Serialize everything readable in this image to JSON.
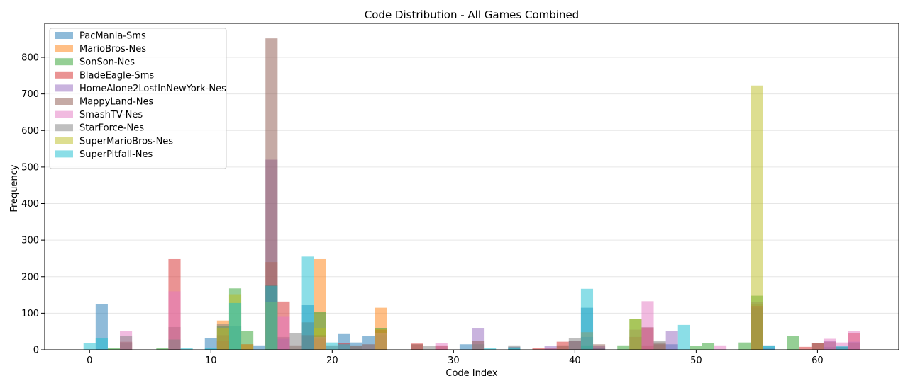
{
  "chart_data": {
    "type": "bar",
    "title": "Code Distribution - All Games Combined",
    "xlabel": "Code Index",
    "ylabel": "Frequency",
    "xlim": [
      -3.7,
      66.7
    ],
    "ylim": [
      0,
      893
    ],
    "xticks": [
      0,
      10,
      20,
      30,
      40,
      50,
      60
    ],
    "yticks": [
      0,
      100,
      200,
      300,
      400,
      500,
      600,
      700,
      800
    ],
    "grid": "y",
    "legend_position": "top-left",
    "bar_alpha": 0.5,
    "series": [
      {
        "name": "PacMania-Sms",
        "color": "#1f77b4",
        "points": [
          [
            1,
            125
          ],
          [
            10,
            32
          ],
          [
            12,
            65
          ],
          [
            14,
            12
          ],
          [
            15,
            175
          ],
          [
            18,
            122
          ],
          [
            21,
            43
          ],
          [
            22,
            20
          ],
          [
            23,
            37
          ],
          [
            31,
            15
          ],
          [
            35,
            8
          ],
          [
            41,
            115
          ],
          [
            42,
            6
          ],
          [
            46,
            12
          ],
          [
            48,
            15
          ],
          [
            56,
            12
          ],
          [
            61,
            8
          ],
          [
            62,
            8
          ]
        ]
      },
      {
        "name": "MarioBros-Nes",
        "color": "#ff7f0e",
        "points": [
          [
            11,
            80
          ],
          [
            15,
            240
          ],
          [
            19,
            248
          ],
          [
            24,
            115
          ],
          [
            41,
            48
          ],
          [
            46,
            10
          ],
          [
            55,
            125
          ]
        ]
      },
      {
        "name": "SonSon-Nes",
        "color": "#2ca02c",
        "points": [
          [
            2,
            5
          ],
          [
            6,
            4
          ],
          [
            11,
            65
          ],
          [
            12,
            168
          ],
          [
            13,
            52
          ],
          [
            15,
            178
          ],
          [
            19,
            103
          ],
          [
            24,
            60
          ],
          [
            41,
            12
          ],
          [
            44,
            12
          ],
          [
            45,
            85
          ],
          [
            50,
            10
          ],
          [
            51,
            18
          ],
          [
            54,
            20
          ],
          [
            55,
            148
          ],
          [
            58,
            38
          ]
        ]
      },
      {
        "name": "BladeEagle-Sms",
        "color": "#d62728",
        "points": [
          [
            3,
            22
          ],
          [
            7,
            248
          ],
          [
            11,
            25
          ],
          [
            13,
            15
          ],
          [
            16,
            132
          ],
          [
            18,
            40
          ],
          [
            19,
            30
          ],
          [
            21,
            18
          ],
          [
            24,
            55
          ],
          [
            27,
            17
          ],
          [
            29,
            12
          ],
          [
            37,
            5
          ],
          [
            38,
            5
          ],
          [
            39,
            22
          ],
          [
            46,
            60
          ],
          [
            47,
            15
          ],
          [
            55,
            120
          ],
          [
            59,
            8
          ],
          [
            60,
            18
          ],
          [
            63,
            45
          ]
        ]
      },
      {
        "name": "HomeAlone2LostInNewYork-Nes",
        "color": "#9467bd",
        "points": [
          [
            15,
            520
          ],
          [
            16,
            30
          ],
          [
            32,
            60
          ],
          [
            38,
            10
          ],
          [
            40,
            25
          ],
          [
            42,
            10
          ],
          [
            48,
            52
          ],
          [
            56,
            5
          ],
          [
            61,
            25
          ],
          [
            63,
            22
          ]
        ]
      },
      {
        "name": "MappyLand-Nes",
        "color": "#8c564b",
        "points": [
          [
            3,
            20
          ],
          [
            7,
            62
          ],
          [
            11,
            40
          ],
          [
            15,
            852
          ],
          [
            16,
            35
          ],
          [
            17,
            12
          ],
          [
            18,
            75
          ],
          [
            19,
            40
          ],
          [
            20,
            12
          ],
          [
            22,
            10
          ],
          [
            23,
            15
          ],
          [
            24,
            40
          ],
          [
            27,
            15
          ],
          [
            29,
            10
          ],
          [
            32,
            25
          ],
          [
            39,
            12
          ],
          [
            40,
            25
          ],
          [
            41,
            5
          ],
          [
            42,
            15
          ],
          [
            45,
            35
          ],
          [
            46,
            62
          ],
          [
            47,
            20
          ],
          [
            55,
            115
          ],
          [
            60,
            18
          ],
          [
            61,
            22
          ],
          [
            63,
            20
          ]
        ]
      },
      {
        "name": "SmashTV-Nes",
        "color": "#e377c2",
        "points": [
          [
            3,
            52
          ],
          [
            7,
            160
          ],
          [
            16,
            90
          ],
          [
            19,
            35
          ],
          [
            24,
            45
          ],
          [
            29,
            18
          ],
          [
            46,
            133
          ],
          [
            52,
            12
          ],
          [
            61,
            30
          ],
          [
            62,
            20
          ],
          [
            63,
            52
          ]
        ]
      },
      {
        "name": "StarForce-Nes",
        "color": "#7f7f7f",
        "points": [
          [
            3,
            38
          ],
          [
            7,
            28
          ],
          [
            11,
            70
          ],
          [
            17,
            45
          ],
          [
            22,
            12
          ],
          [
            28,
            10
          ],
          [
            32,
            15
          ],
          [
            35,
            12
          ],
          [
            40,
            32
          ],
          [
            41,
            35
          ],
          [
            45,
            55
          ],
          [
            47,
            25
          ],
          [
            55,
            130
          ],
          [
            62,
            8
          ]
        ]
      },
      {
        "name": "SuperMarioBros-Nes",
        "color": "#bcbd22",
        "points": [
          [
            11,
            60
          ],
          [
            12,
            152
          ],
          [
            13,
            15
          ],
          [
            15,
            130
          ],
          [
            19,
            60
          ],
          [
            24,
            58
          ],
          [
            45,
            85
          ],
          [
            55,
            723
          ]
        ]
      },
      {
        "name": "SuperPitfall-Nes",
        "color": "#17becf",
        "points": [
          [
            0,
            18
          ],
          [
            1,
            32
          ],
          [
            8,
            5
          ],
          [
            10,
            5
          ],
          [
            12,
            128
          ],
          [
            15,
            175
          ],
          [
            18,
            255
          ],
          [
            20,
            20
          ],
          [
            21,
            15
          ],
          [
            33,
            5
          ],
          [
            35,
            5
          ],
          [
            41,
            167
          ],
          [
            49,
            68
          ],
          [
            56,
            10
          ],
          [
            62,
            10
          ]
        ]
      }
    ]
  }
}
